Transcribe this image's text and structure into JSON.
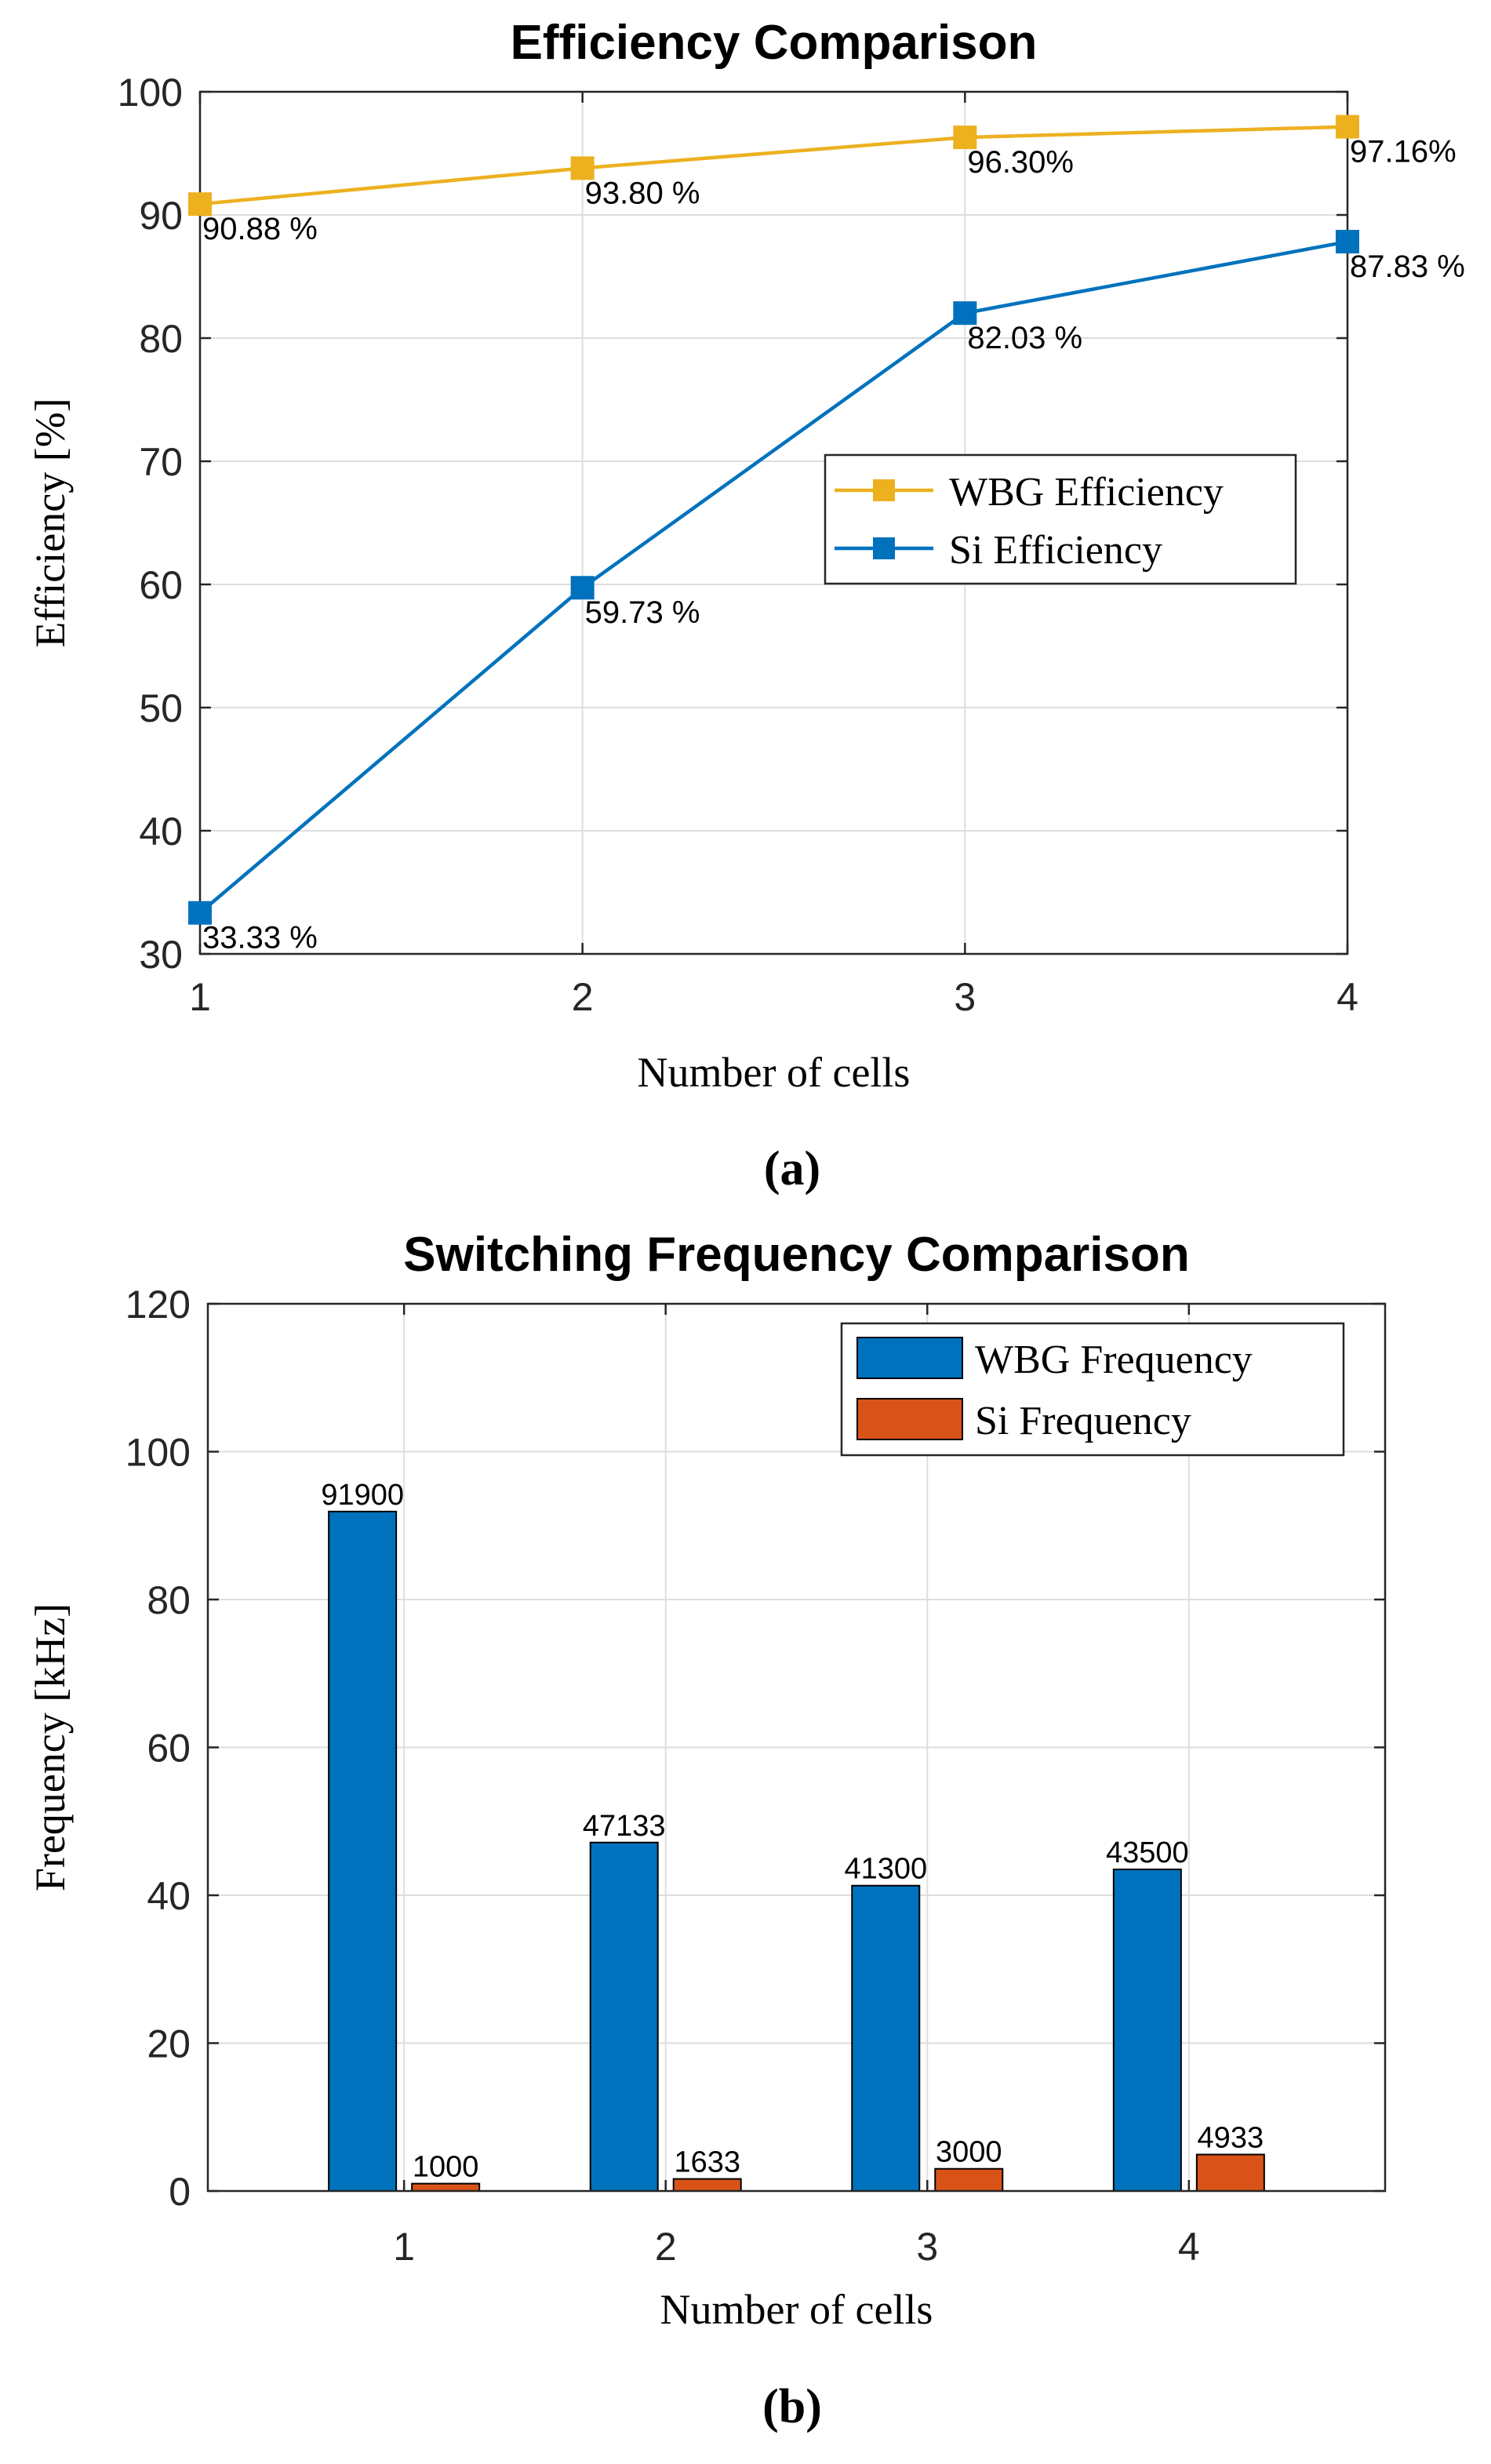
{
  "chart_data": [
    {
      "type": "line",
      "panel_label": "(a)",
      "title": "Efficiency Comparison",
      "xlabel": "Number of cells",
      "ylabel": "Efficiency [%]",
      "x": [
        1,
        2,
        3,
        4
      ],
      "xlim": [
        1,
        4
      ],
      "ylim": [
        30,
        100
      ],
      "xticks": [
        "1",
        "2",
        "3",
        "4"
      ],
      "yticks": [
        "30",
        "40",
        "50",
        "60",
        "70",
        "80",
        "90",
        "100"
      ],
      "grid": true,
      "legend_position": "center-right",
      "series": [
        {
          "name": "WBG Efficiency",
          "color": "#EDB120",
          "marker": "square",
          "values": [
            90.88,
            93.8,
            96.3,
            97.16
          ],
          "labels": [
            "90.88 %",
            "93.80 %",
            "96.30%",
            "97.16%"
          ]
        },
        {
          "name": "Si Efficiency",
          "color": "#0072BD",
          "marker": "square",
          "values": [
            33.33,
            59.73,
            82.03,
            87.83
          ],
          "labels": [
            "33.33 %",
            "59.73 %",
            "82.03 %",
            "87.83 %"
          ]
        }
      ]
    },
    {
      "type": "bar",
      "panel_label": "(b)",
      "title": "Switching Frequency Comparison",
      "xlabel": "Number of cells",
      "ylabel": "Frequency [kHz]",
      "categories": [
        "1",
        "2",
        "3",
        "4"
      ],
      "ylim": [
        0,
        120
      ],
      "yticks": [
        "0",
        "20",
        "40",
        "60",
        "80",
        "100",
        "120"
      ],
      "grid": true,
      "legend_position": "top-right",
      "series": [
        {
          "name": "WBG Frequency",
          "color": "#0072BD",
          "values": [
            91.9,
            47.133,
            41.3,
            43.5
          ],
          "labels": [
            "91900",
            "47133",
            "41300",
            "43500"
          ]
        },
        {
          "name": "Si Frequency",
          "color": "#D95319",
          "values": [
            1.0,
            1.633,
            3.0,
            4.933
          ],
          "labels": [
            "1000",
            "1633",
            "3000",
            "4933"
          ]
        }
      ]
    }
  ]
}
